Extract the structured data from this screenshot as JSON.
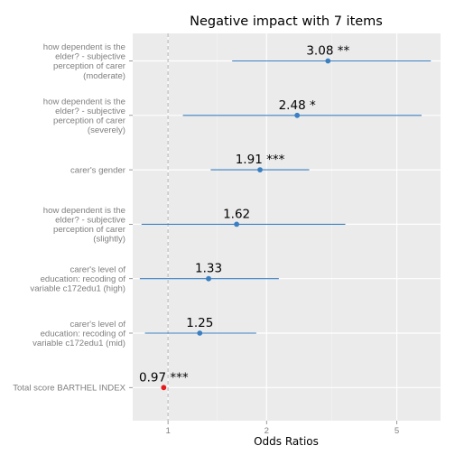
{
  "chart_data": {
    "type": "forest",
    "title": "Negative impact with 7 items",
    "xlabel": "Odds Ratios",
    "x_scale": "log",
    "xlim": [
      0.78,
      6.8
    ],
    "x_ticks": [
      1,
      2,
      5
    ],
    "reference_line": 1,
    "grid": true,
    "colors": {
      "panel": "#ebebeb",
      "grid": "#ffffff",
      "positive": "#3a7fc1",
      "negative": "#e41a1c",
      "reference": "#bdbdbd"
    },
    "rows": [
      {
        "label": [
          "how dependent is the",
          "elder? - subjective",
          "perception of carer",
          "(moderate)"
        ],
        "estimate": 3.08,
        "ci_low": 1.57,
        "ci_high": 6.35,
        "stars": "**",
        "value_label": "3.08 **"
      },
      {
        "label": [
          "how dependent is the",
          "elder? - subjective",
          "perception of carer",
          "(severely)"
        ],
        "estimate": 2.48,
        "ci_low": 1.11,
        "ci_high": 5.95,
        "stars": "*",
        "value_label": "2.48 *"
      },
      {
        "label": [
          "carer's gender"
        ],
        "estimate": 1.91,
        "ci_low": 1.35,
        "ci_high": 2.7,
        "stars": "***",
        "value_label": "1.91 ***"
      },
      {
        "label": [
          "how dependent is the",
          "elder? - subjective",
          "perception of carer",
          "(slightly)"
        ],
        "estimate": 1.62,
        "ci_low": 0.83,
        "ci_high": 3.48,
        "stars": "",
        "value_label": "1.62"
      },
      {
        "label": [
          "carer's level of",
          "education: recoding of",
          "variable c172edu1 (high)"
        ],
        "estimate": 1.33,
        "ci_low": 0.82,
        "ci_high": 2.18,
        "stars": "",
        "value_label": "1.33"
      },
      {
        "label": [
          "carer's level of",
          "education: recoding of",
          "variable c172edu1 (mid)"
        ],
        "estimate": 1.25,
        "ci_low": 0.85,
        "ci_high": 1.86,
        "stars": "",
        "value_label": "1.25"
      },
      {
        "label": [
          "Total score BARTHEL INDEX"
        ],
        "estimate": 0.97,
        "ci_low": 0.965,
        "ci_high": 0.975,
        "stars": "***",
        "value_label": "0.97 ***"
      }
    ]
  }
}
